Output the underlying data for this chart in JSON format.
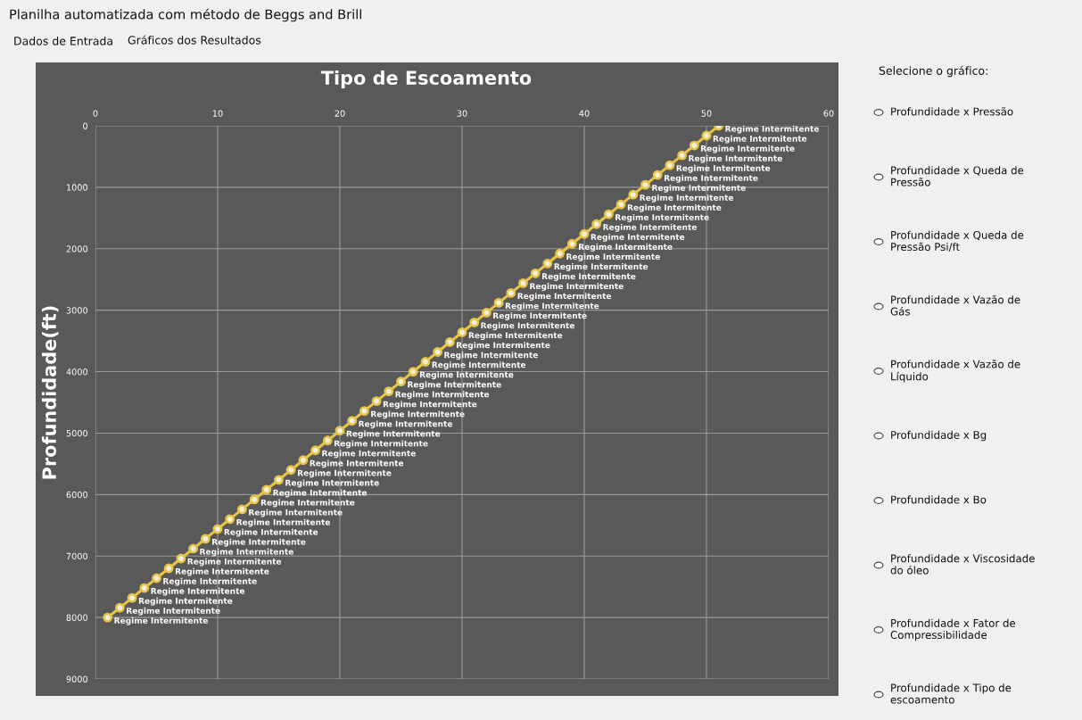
{
  "chart_data": {
    "type": "line",
    "title": "Tipo de Escoamento",
    "ylabel": "Profundidade(ft)",
    "x": [
      1,
      2,
      3,
      4,
      5,
      6,
      7,
      8,
      9,
      10,
      11,
      12,
      13,
      14,
      15,
      16,
      17,
      18,
      19,
      20,
      21,
      22,
      23,
      24,
      25,
      26,
      27,
      28,
      29,
      30,
      31,
      32,
      33,
      34,
      35,
      36,
      37,
      38,
      39,
      40,
      41,
      42,
      43,
      44,
      45,
      46,
      47,
      48,
      49,
      50,
      51
    ],
    "series": [
      {
        "color": "#e8c547",
        "values": [
          8000,
          7840,
          7680,
          7520,
          7360,
          7200,
          7040,
          6880,
          6720,
          6560,
          6400,
          6240,
          6080,
          5920,
          5760,
          5600,
          5440,
          5280,
          5120,
          4960,
          4800,
          4640,
          4480,
          4320,
          4160,
          4000,
          3840,
          3680,
          3520,
          3360,
          3200,
          3040,
          2880,
          2720,
          2560,
          2400,
          2240,
          2080,
          1920,
          1760,
          1600,
          1440,
          1280,
          1120,
          960,
          800,
          640,
          480,
          320,
          160,
          0
        ],
        "value_labels": [
          "Regime Intermitente",
          "Regime Intermitente",
          "Regime Intermitente",
          "Regime Intermitente",
          "Regime Intermitente",
          "Regime Intermitente",
          "Regime Intermitente",
          "Regime Intermitente",
          "Regime Intermitente",
          "Regime Intermitente",
          "Regime Intermitente",
          "Regime Intermitente",
          "Regime Intermitente",
          "Regime Intermitente",
          "Regime Intermitente",
          "Regime Intermitente",
          "Regime Intermitente",
          "Regime Intermitente",
          "Regime Intermitente",
          "Regime Intermitente",
          "Regime Intermitente",
          "Regime Intermitente",
          "Regime Intermitente",
          "Regime Intermitente",
          "Regime Intermitente",
          "Regime Intermitente",
          "Regime Intermitente",
          "Regime Intermitente",
          "Regime Intermitente",
          "Regime Intermitente",
          "Regime Intermitente",
          "Regime Intermitente",
          "Regime Intermitente",
          "Regime Intermitente",
          "Regime Intermitente",
          "Regime Intermitente",
          "Regime Intermitente",
          "Regime Intermitente",
          "Regime Intermitente",
          "Regime Intermitente",
          "Regime Intermitente",
          "Regime Intermitente",
          "Regime Intermitente",
          "Regime Intermitente",
          "Regime Intermitente",
          "Regime Intermitente",
          "Regime Intermitente",
          "Regime Intermitente",
          "Regime Intermitente",
          "Regime Intermitente",
          "Regime Intermitente"
        ]
      }
    ],
    "xlim": [
      0,
      60
    ],
    "xticks": [
      0,
      10,
      20,
      30,
      40,
      50,
      60
    ],
    "ylim": [
      9000,
      0
    ],
    "yticks": [
      0,
      1000,
      2000,
      3000,
      4000,
      5000,
      6000,
      7000,
      8000,
      9000
    ],
    "grid": true,
    "marker": "circle",
    "line_style": "solid",
    "annotations": [
      "Planilha automatizada com método de Beggs and Brill",
      "Dados de Entrada",
      "Gráficos dos Resultados",
      "Selecione o gráfico:",
      "Profundidade x Pressão",
      "Profundidade x Queda de\nPressão",
      "Profundidade x Queda de\nPressão Psi/ft",
      "Profundidade x Vazão de\nGás",
      "Profundidade x Vazão de\nLíquido",
      "Profundidade x Bg",
      "Profundidade x Bo",
      "Profundidade x Viscosidade\ndo óleo",
      "Profundidade x Fator de\nCompressibilidade",
      "Profundidade x Tipo de\nescoamento"
    ]
  }
}
